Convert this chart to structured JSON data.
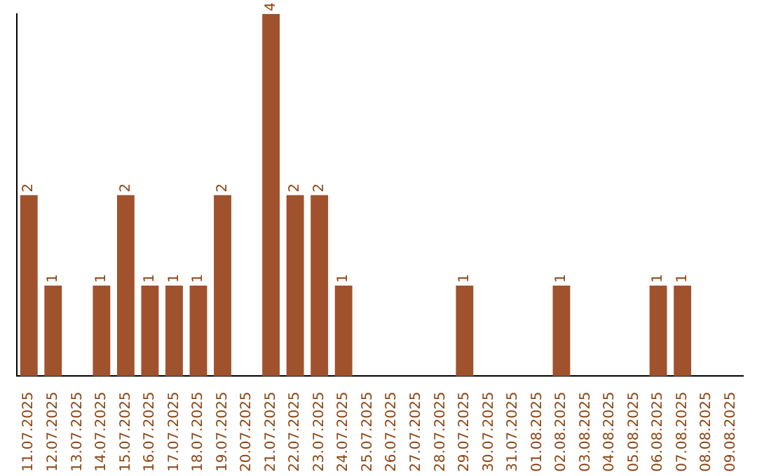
{
  "chart_data": {
    "type": "bar",
    "categories": [
      "11.07.2025",
      "12.07.2025",
      "13.07.2025",
      "14.07.2025",
      "15.07.2025",
      "16.07.2025",
      "17.07.2025",
      "18.07.2025",
      "19.07.2025",
      "20.07.2025",
      "21.07.2025",
      "22.07.2025",
      "23.07.2025",
      "24.07.2025",
      "25.07.2025",
      "26.07.2025",
      "27.07.2025",
      "28.07.2025",
      "29.07.2025",
      "30.07.2025",
      "31.07.2025",
      "01.08.2025",
      "02.08.2025",
      "03.08.2025",
      "04.08.2025",
      "05.08.2025",
      "06.08.2025",
      "07.08.2025",
      "08.08.2025",
      "09.08.2025"
    ],
    "values": [
      2,
      1,
      0,
      1,
      2,
      1,
      1,
      1,
      2,
      0,
      4,
      2,
      2,
      1,
      0,
      0,
      0,
      0,
      1,
      0,
      0,
      0,
      1,
      0,
      0,
      0,
      1,
      1,
      0,
      0
    ],
    "value_labels": [
      "2",
      "1",
      null,
      "1",
      "2",
      "1",
      "1",
      "1",
      "2",
      null,
      "4",
      "2",
      "2",
      "1",
      null,
      null,
      null,
      null,
      "1",
      null,
      null,
      null,
      "1",
      null,
      null,
      null,
      "1",
      "1",
      null,
      null
    ],
    "color": "#a0522d",
    "tick_labels": "x",
    "grid": false,
    "legend": false
  }
}
